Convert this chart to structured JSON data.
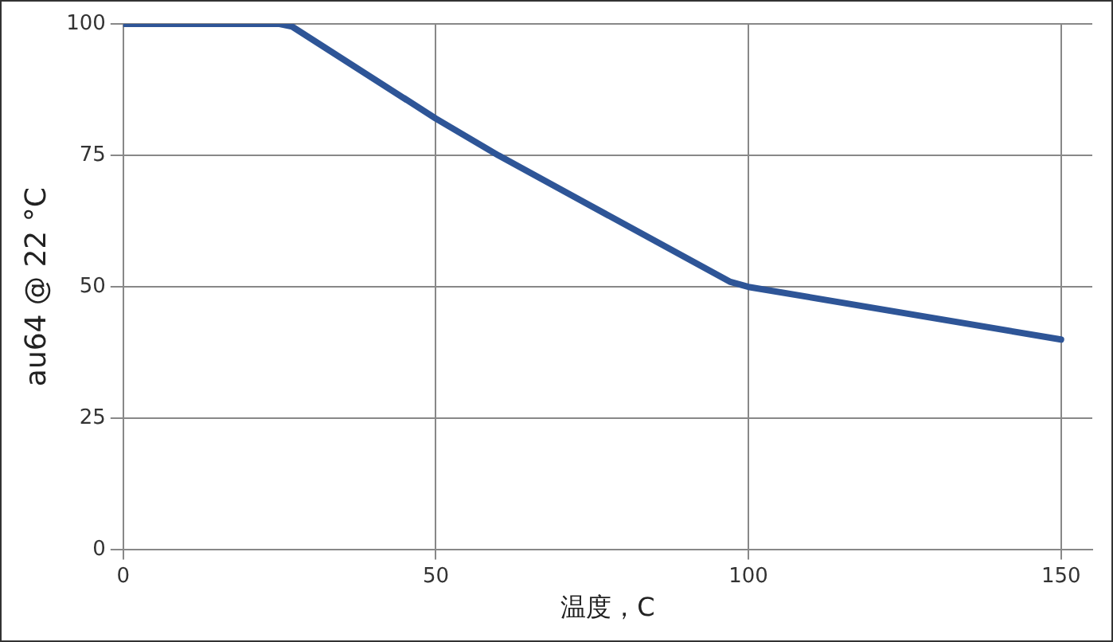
{
  "chart_data": {
    "type": "line",
    "xlabel": "温度，C",
    "ylabel": "au64 @ 22 °C",
    "x": [
      0,
      25,
      27,
      50,
      60,
      97,
      100,
      150
    ],
    "series": [
      {
        "color": "#2e5597",
        "values": [
          100,
          100,
          99.5,
          82,
          75,
          51,
          50,
          40
        ]
      }
    ],
    "xlim": [
      0,
      155
    ],
    "xticks": [
      0,
      50,
      100,
      150
    ],
    "ylim": [
      0,
      100
    ],
    "yticks": [
      0,
      25,
      50,
      75,
      100
    ],
    "grid": true,
    "legend": false,
    "marker": "none",
    "line_style": "solid"
  }
}
